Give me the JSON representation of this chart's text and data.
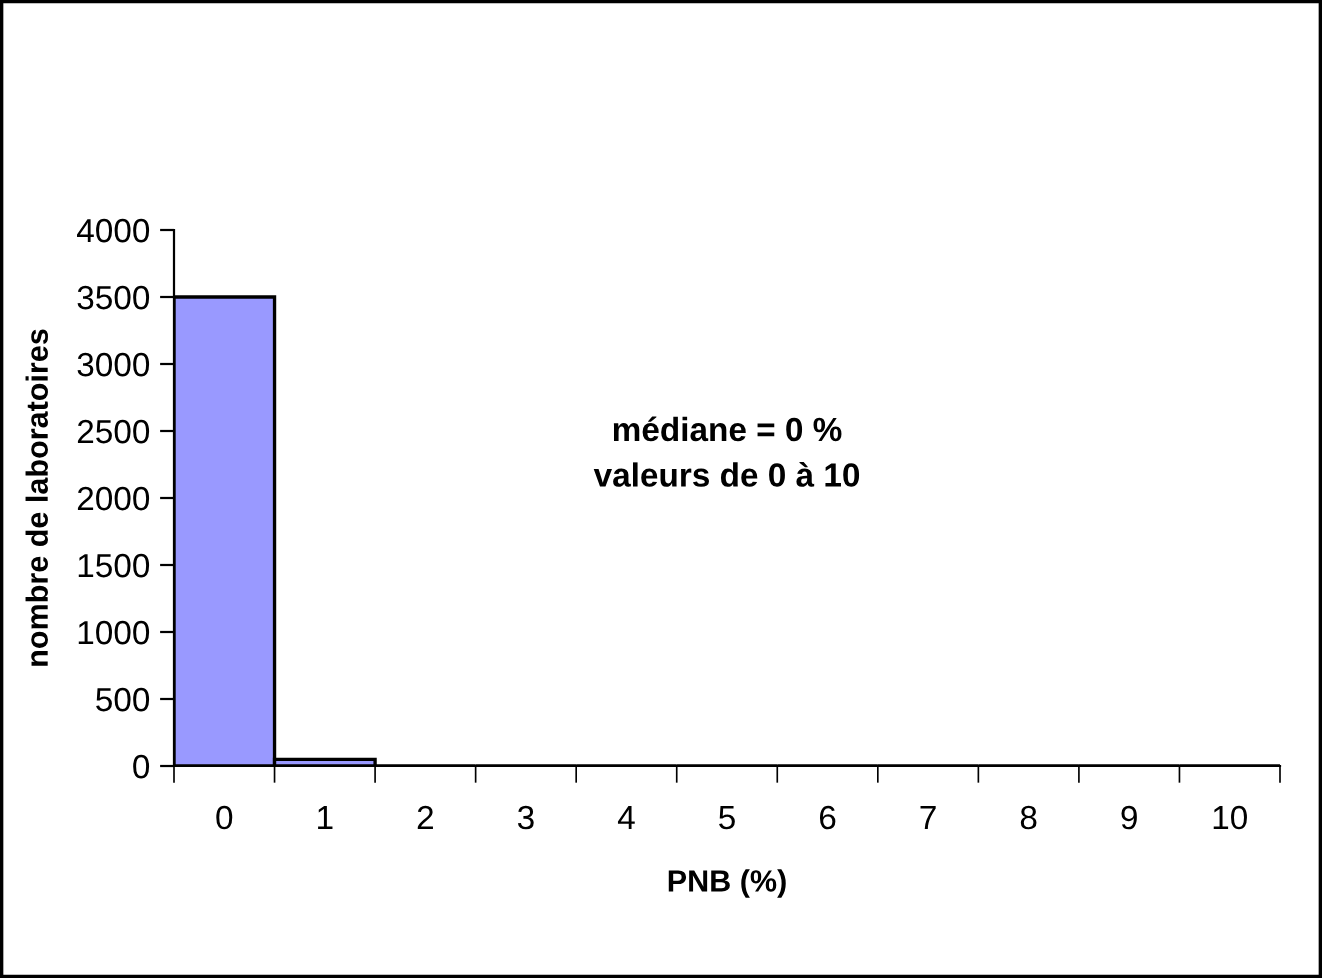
{
  "chart_data": {
    "type": "bar",
    "xlabel": "PNB (%)",
    "ylabel": "nombre de laboratoires",
    "categories": [
      "0",
      "1",
      "2",
      "3",
      "4",
      "5",
      "6",
      "7",
      "8",
      "9",
      "10"
    ],
    "values": [
      3500,
      50,
      0,
      0,
      0,
      0,
      0,
      0,
      0,
      0,
      0
    ],
    "color": "#9999ff",
    "ylim": [
      0,
      4000
    ],
    "yticks": [
      0,
      500,
      1000,
      1500,
      2000,
      2500,
      3000,
      3500,
      4000
    ],
    "grid": false,
    "legend": false,
    "annotations": [
      "médiane = 0 %\nvaleurs de 0 à 10"
    ]
  }
}
